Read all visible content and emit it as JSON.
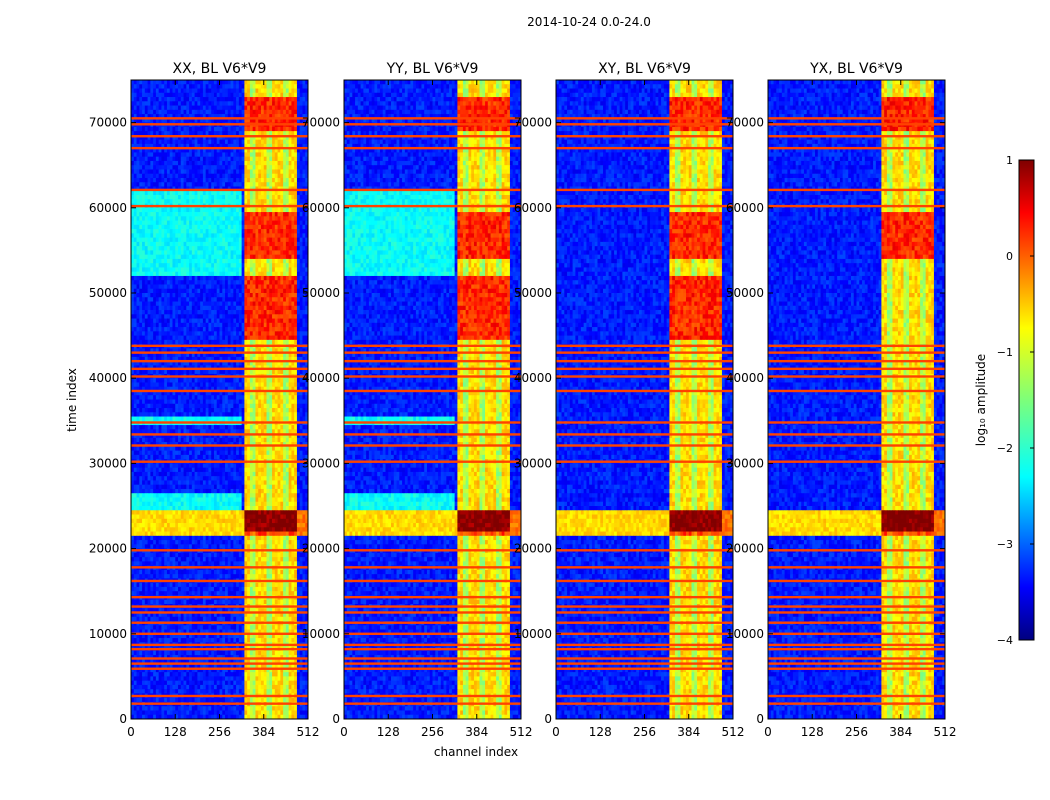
{
  "figure": {
    "suptitle": "2014-10-24 0.0-24.0"
  },
  "chart_data": {
    "type": "heatmap",
    "xlabel": "channel index",
    "ylabel": "time index",
    "xlim": [
      0,
      512
    ],
    "ylim": [
      0,
      75000
    ],
    "xticks": [
      0,
      128,
      256,
      384,
      512
    ],
    "xtick_labels": [
      "0",
      "128",
      "256",
      "384",
      "512"
    ],
    "yticks": [
      0,
      10000,
      20000,
      30000,
      40000,
      50000,
      60000,
      70000
    ],
    "ytick_labels": [
      "0",
      "10000",
      "20000",
      "30000",
      "40000",
      "50000",
      "60000",
      "70000"
    ],
    "colormap": "jet",
    "colorbar": {
      "label": "log₁₀ amplitude",
      "range": [
        -4,
        1
      ],
      "ticks": [
        1,
        0,
        -1,
        -2,
        -3,
        -4
      ],
      "tick_labels": [
        "1",
        "0",
        "−1",
        "−2",
        "−3",
        "−4"
      ]
    },
    "panels": [
      {
        "title": "XX, BL V6*V9"
      },
      {
        "title": "YY, BL V6*V9"
      },
      {
        "title": "XY, BL V6*V9"
      },
      {
        "title": "YX, BL V6*V9"
      }
    ],
    "features": {
      "rfi_channel_band": [
        325,
        480
      ],
      "bright_time_band": [
        21500,
        24500
      ],
      "flagged_rows": [
        1800,
        2700,
        5900,
        6500,
        7100,
        8200,
        8700,
        10000,
        11300,
        12500,
        13200,
        14300,
        16200,
        17800,
        19800,
        30200,
        32100,
        33400,
        34800,
        38500,
        40200,
        41100,
        42000,
        43000,
        43800,
        60200,
        62100,
        67000,
        68400,
        69800,
        70500
      ]
    }
  }
}
